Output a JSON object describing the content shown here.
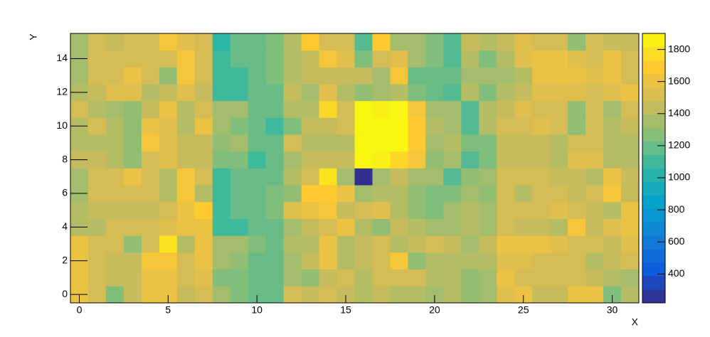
{
  "chart_data": {
    "type": "heatmap",
    "xlabel": "X",
    "ylabel": "Y",
    "x": [
      0,
      1,
      2,
      3,
      4,
      5,
      6,
      7,
      8,
      9,
      10,
      11,
      12,
      13,
      14,
      15,
      16,
      17,
      18,
      19,
      20,
      21,
      22,
      23,
      24,
      25,
      26,
      27,
      28,
      29,
      30,
      31
    ],
    "y": [
      0,
      1,
      2,
      3,
      4,
      5,
      6,
      7,
      8,
      9,
      10,
      11,
      12,
      13,
      14,
      15
    ],
    "xlim": [
      -0.5,
      31.5
    ],
    "xticks": [
      0,
      5,
      10,
      15,
      20,
      25,
      30
    ],
    "ylim": [
      -0.5,
      15.5
    ],
    "yticks": [
      0,
      2,
      4,
      6,
      8,
      10,
      12,
      14
    ],
    "zlim": [
      220,
      1900
    ],
    "zticks": [
      400,
      600,
      800,
      1000,
      1200,
      1400,
      1600,
      1800
    ],
    "colorscale": [
      "#352a87",
      "#0f5cdd",
      "#1481d6",
      "#06a4ca",
      "#2eb7a4",
      "#87bf77",
      "#d1bb59",
      "#fec832",
      "#f9fb0e"
    ],
    "z": [
      [
        1600,
        1500,
        1250,
        1450,
        1600,
        1600,
        1450,
        1500,
        1350,
        1250,
        1200,
        1200,
        1500,
        1450,
        1500,
        1450,
        1400,
        1450,
        1400,
        1400,
        1350,
        1400,
        1300,
        1350,
        1550,
        1600,
        1450,
        1450,
        1600,
        1600,
        1250,
        1400
      ],
      [
        1600,
        1500,
        1450,
        1450,
        1600,
        1600,
        1500,
        1550,
        1250,
        1250,
        1200,
        1200,
        1350,
        1300,
        1450,
        1500,
        1400,
        1500,
        1500,
        1500,
        1400,
        1400,
        1300,
        1350,
        1600,
        1500,
        1500,
        1500,
        1500,
        1450,
        1400,
        1350
      ],
      [
        1600,
        1500,
        1450,
        1450,
        1650,
        1650,
        1500,
        1600,
        1350,
        1300,
        1200,
        1200,
        1350,
        1450,
        1600,
        1400,
        1450,
        1500,
        1650,
        1300,
        1400,
        1400,
        1400,
        1400,
        1550,
        1550,
        1500,
        1500,
        1500,
        1400,
        1450,
        1500
      ],
      [
        1600,
        1500,
        1500,
        1300,
        1500,
        1800,
        1400,
        1600,
        1350,
        1350,
        1250,
        1200,
        1400,
        1400,
        1600,
        1400,
        1450,
        1500,
        1400,
        1450,
        1500,
        1450,
        1350,
        1450,
        1600,
        1600,
        1600,
        1550,
        1500,
        1500,
        1450,
        1550
      ],
      [
        1400,
        1400,
        1500,
        1500,
        1500,
        1550,
        1600,
        1600,
        1100,
        1100,
        1200,
        1200,
        1350,
        1450,
        1500,
        1600,
        1400,
        1300,
        1450,
        1400,
        1350,
        1350,
        1400,
        1350,
        1500,
        1450,
        1450,
        1400,
        1650,
        1450,
        1550,
        1600
      ],
      [
        1400,
        1450,
        1450,
        1450,
        1450,
        1500,
        1600,
        1700,
        1100,
        1200,
        1200,
        1250,
        1550,
        1600,
        1650,
        1450,
        1500,
        1550,
        1400,
        1300,
        1250,
        1350,
        1400,
        1350,
        1500,
        1500,
        1500,
        1550,
        1500,
        1450,
        1400,
        1600
      ],
      [
        1350,
        1500,
        1500,
        1500,
        1500,
        1400,
        1650,
        1400,
        1100,
        1200,
        1200,
        1250,
        1300,
        1700,
        1700,
        1600,
        1350,
        1400,
        1400,
        1300,
        1250,
        1250,
        1350,
        1300,
        1500,
        1400,
        1500,
        1500,
        1450,
        1500,
        1650,
        1450
      ],
      [
        1350,
        1500,
        1500,
        1600,
        1500,
        1400,
        1650,
        1500,
        1100,
        1200,
        1200,
        1200,
        1400,
        1500,
        1800,
        1350,
        250,
        1350,
        1450,
        1350,
        1350,
        1150,
        1300,
        1350,
        1500,
        1500,
        1500,
        1450,
        1450,
        1400,
        1600,
        1450
      ],
      [
        1450,
        1450,
        1400,
        1300,
        1500,
        1550,
        1450,
        1450,
        1250,
        1250,
        1100,
        1200,
        1350,
        1450,
        1450,
        1450,
        1880,
        1850,
        1750,
        1650,
        1300,
        1350,
        1150,
        1250,
        1450,
        1450,
        1450,
        1400,
        1550,
        1550,
        1400,
        1400
      ],
      [
        1400,
        1400,
        1400,
        1300,
        1650,
        1550,
        1450,
        1450,
        1300,
        1350,
        1200,
        1200,
        1500,
        1400,
        1400,
        1400,
        1880,
        1880,
        1880,
        1700,
        1350,
        1400,
        1250,
        1250,
        1450,
        1450,
        1450,
        1400,
        1500,
        1500,
        1400,
        1400
      ],
      [
        1400,
        1500,
        1400,
        1300,
        1600,
        1550,
        1400,
        1600,
        1350,
        1250,
        1200,
        1100,
        1250,
        1450,
        1450,
        1500,
        1880,
        1880,
        1880,
        1700,
        1400,
        1350,
        1150,
        1400,
        1500,
        1500,
        1550,
        1500,
        1300,
        1500,
        1400,
        1450
      ],
      [
        1500,
        1400,
        1350,
        1300,
        1450,
        1600,
        1400,
        1500,
        1350,
        1350,
        1200,
        1200,
        1400,
        1400,
        1750,
        1500,
        1880,
        1850,
        1880,
        1650,
        1350,
        1350,
        1150,
        1400,
        1450,
        1550,
        1500,
        1500,
        1300,
        1500,
        1350,
        1500
      ],
      [
        1400,
        1450,
        1550,
        1550,
        1400,
        1450,
        1550,
        1450,
        1100,
        1100,
        1200,
        1200,
        1450,
        1350,
        1550,
        1400,
        1300,
        1350,
        1400,
        1250,
        1200,
        1150,
        1400,
        1250,
        1400,
        1450,
        1550,
        1550,
        1550,
        1500,
        1550,
        1600
      ],
      [
        1350,
        1500,
        1500,
        1600,
        1500,
        1300,
        1650,
        1500,
        1100,
        1100,
        1200,
        1250,
        1400,
        1450,
        1450,
        1450,
        1450,
        1350,
        1650,
        1200,
        1200,
        1200,
        1350,
        1350,
        1350,
        1400,
        1600,
        1600,
        1600,
        1550,
        1600,
        1500
      ],
      [
        1350,
        1500,
        1500,
        1500,
        1500,
        1500,
        1650,
        1500,
        1100,
        1200,
        1200,
        1250,
        1400,
        1450,
        1650,
        1550,
        1250,
        1500,
        1550,
        1350,
        1250,
        1150,
        1400,
        1250,
        1400,
        1550,
        1600,
        1600,
        1550,
        1500,
        1600,
        1500
      ],
      [
        1350,
        1500,
        1450,
        1500,
        1500,
        1650,
        1550,
        1500,
        1050,
        1200,
        1200,
        1250,
        1400,
        1700,
        1500,
        1500,
        1150,
        1700,
        1350,
        1350,
        1250,
        1150,
        1450,
        1400,
        1450,
        1550,
        1500,
        1500,
        1300,
        1500,
        1450,
        1450
      ]
    ]
  }
}
